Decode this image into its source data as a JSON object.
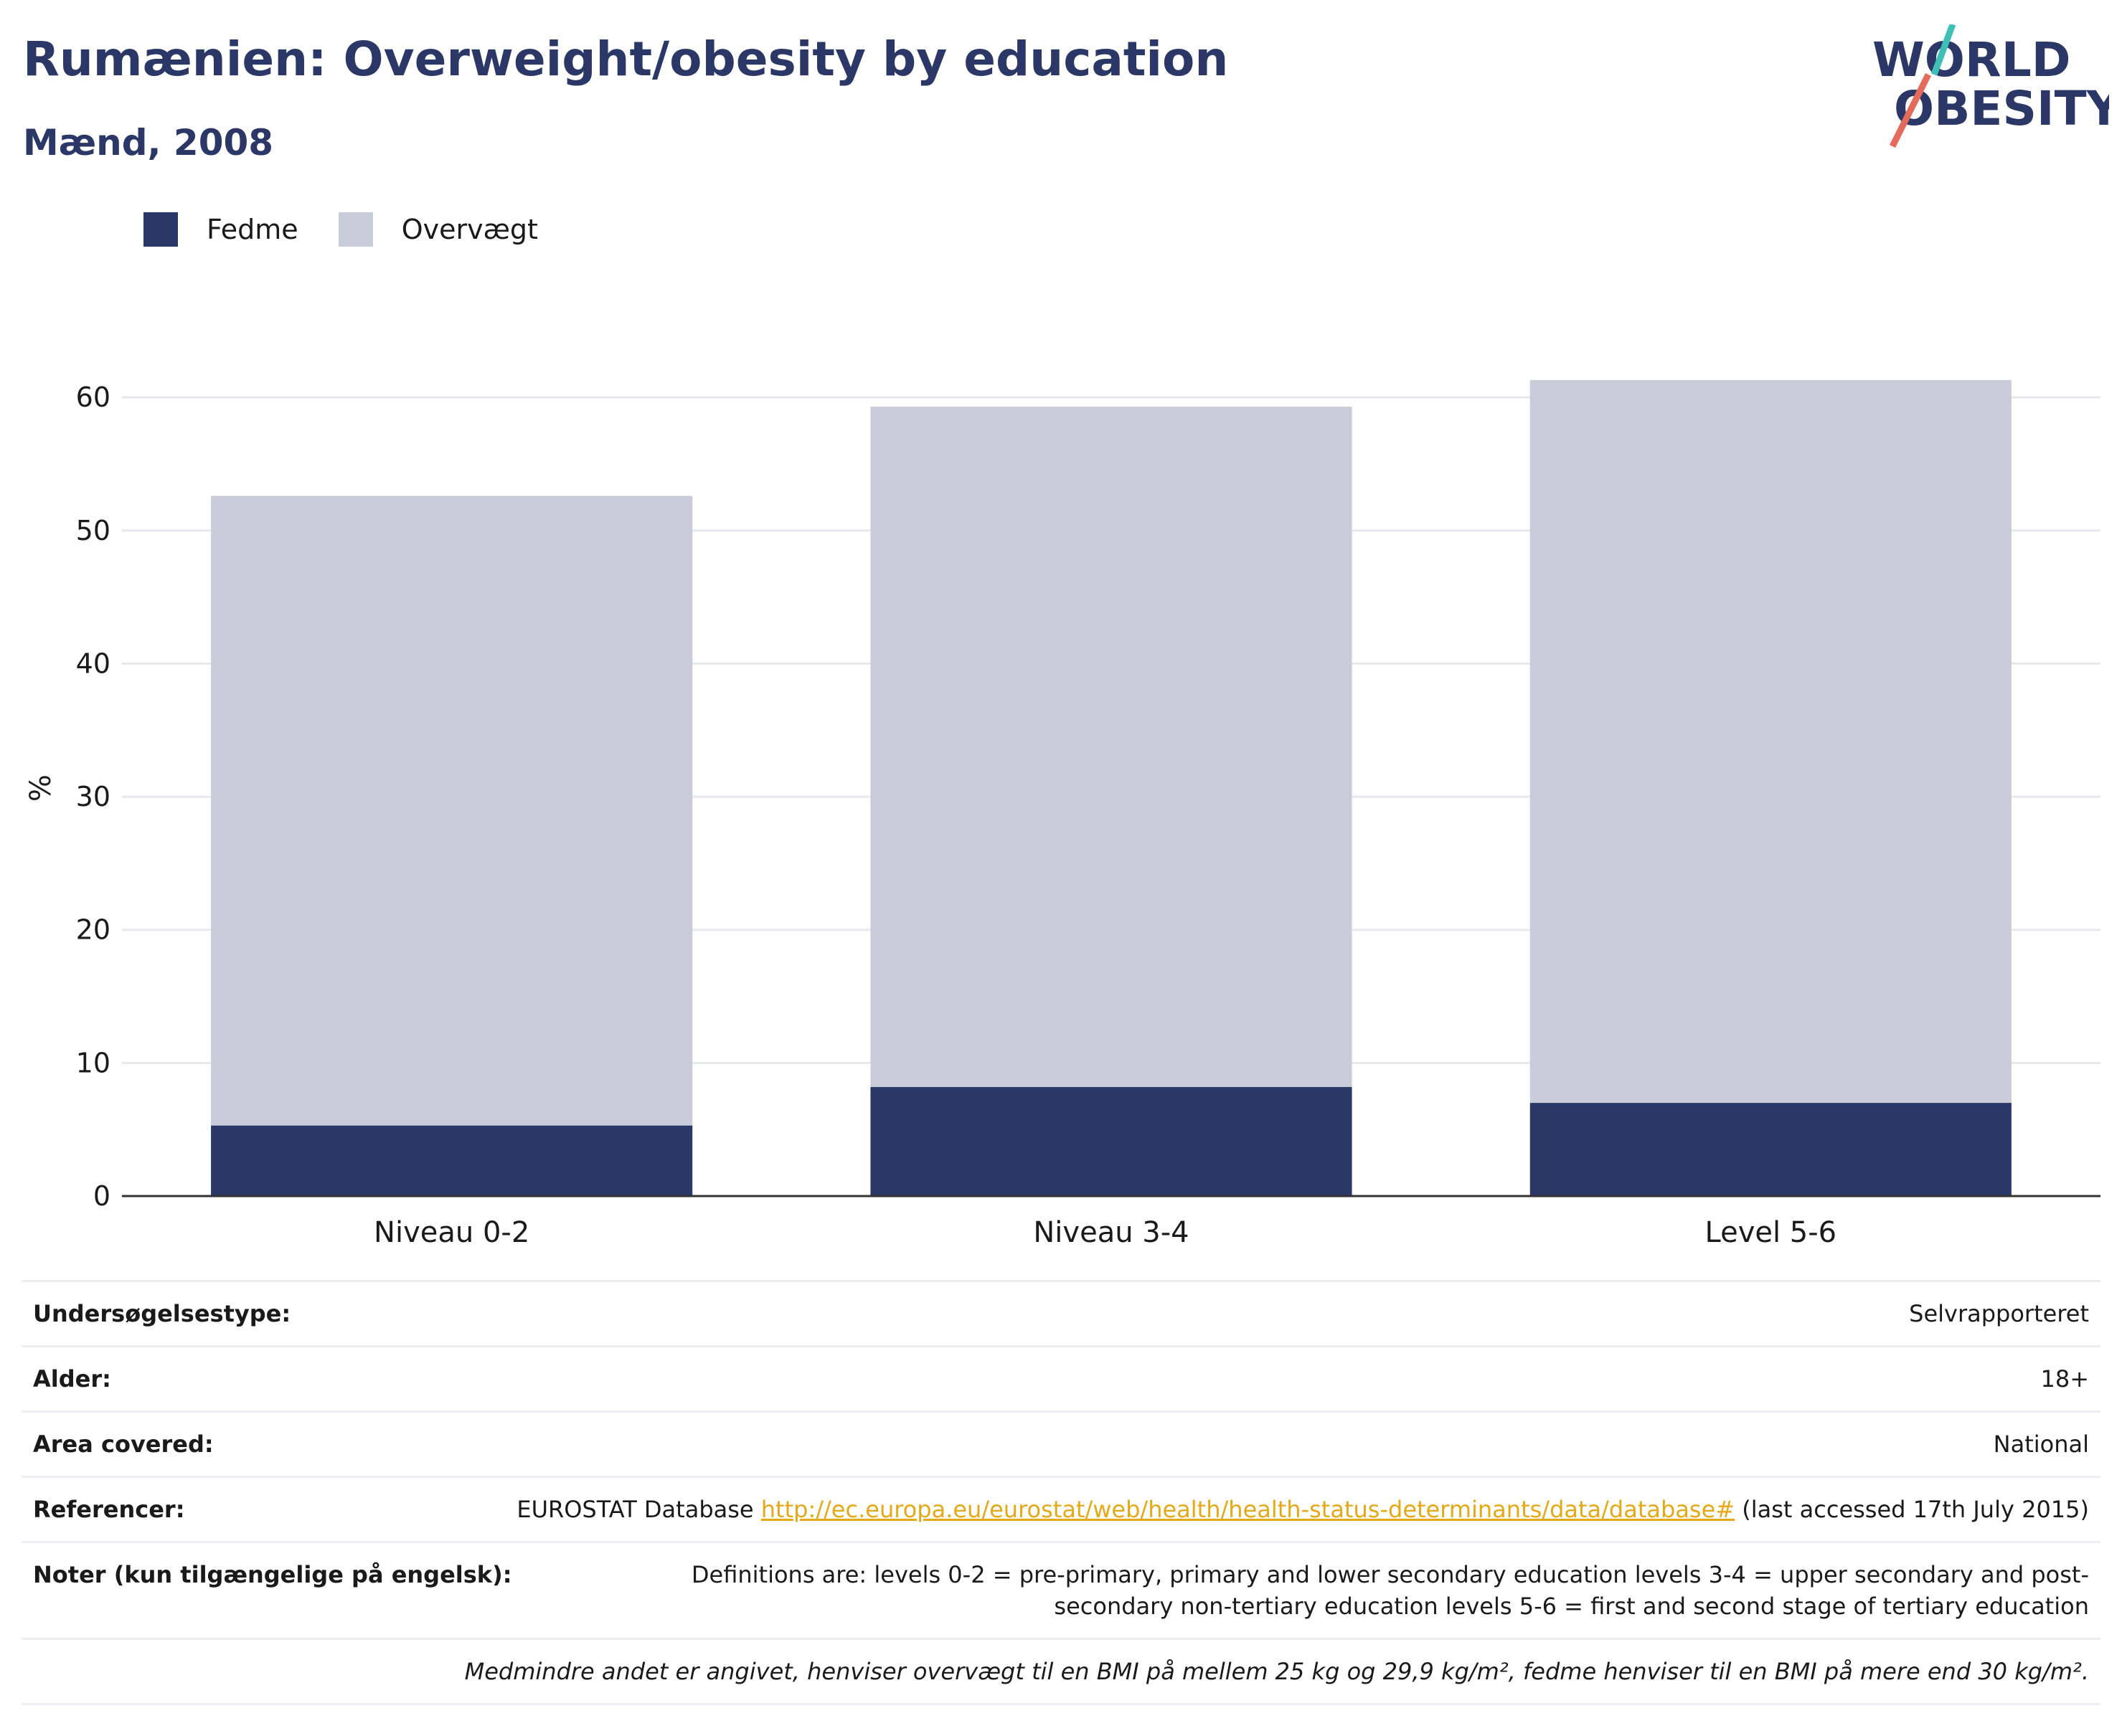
{
  "title": "Rumænien: Overweight/obesity by education",
  "subtitle": "Mænd, 2008",
  "logo": {
    "line1": "WORLD",
    "line2": "OBESITY",
    "icon": "world-obesity-logo"
  },
  "colors": {
    "obesity": "#2b3766",
    "overweight": "#c9ccd8",
    "title": "#2b3766",
    "link": "#e6a817",
    "grid": "#e6e8ee",
    "axis": "#333333"
  },
  "legend": [
    {
      "label": "Fedme",
      "color": "#2b3766"
    },
    {
      "label": "Overvægt",
      "color": "#c9ccd8"
    }
  ],
  "chart_data": {
    "type": "bar",
    "stacked": true,
    "categories": [
      "Niveau 0-2",
      "Niveau 3-4",
      "Level 5-6"
    ],
    "series": [
      {
        "name": "Fedme",
        "values": [
          5.3,
          8.2,
          7.0
        ]
      },
      {
        "name": "Overvægt",
        "values": [
          47.3,
          51.1,
          54.3
        ]
      }
    ],
    "totals": [
      52.6,
      59.3,
      61.3
    ],
    "ylabel": "%",
    "xlabel": "",
    "ylim": [
      0,
      60
    ],
    "yticks": [
      0,
      10,
      20,
      30,
      40,
      50,
      60
    ],
    "grid": true,
    "legend_position": "top-left"
  },
  "info": {
    "survey_type": {
      "key": "Undersøgelsestype:",
      "value": "Selvrapporteret"
    },
    "age": {
      "key": "Alder:",
      "value": "18+"
    },
    "area": {
      "key": "Area covered:",
      "value": "National"
    },
    "references": {
      "key": "Referencer:",
      "prefix": "EUROSTAT Database ",
      "link": "http://ec.europa.eu/eurostat/web/health/health-status-determinants/data/database#",
      "suffix": " (last accessed 17th July 2015)"
    },
    "notes": {
      "key": "Noter (kun tilgængelige på engelsk):",
      "value": "Definitions are: levels 0-2 = pre-primary, primary and lower secondary education levels 3-4 = upper secondary and post-secondary non-tertiary education levels 5-6 = first and second stage of tertiary education"
    },
    "footnote": "Medmindre andet er angivet, henviser overvægt til en BMI på mellem 25 kg og 29,9 kg/m², fedme henviser til en BMI på mere end 30 kg/m²."
  }
}
